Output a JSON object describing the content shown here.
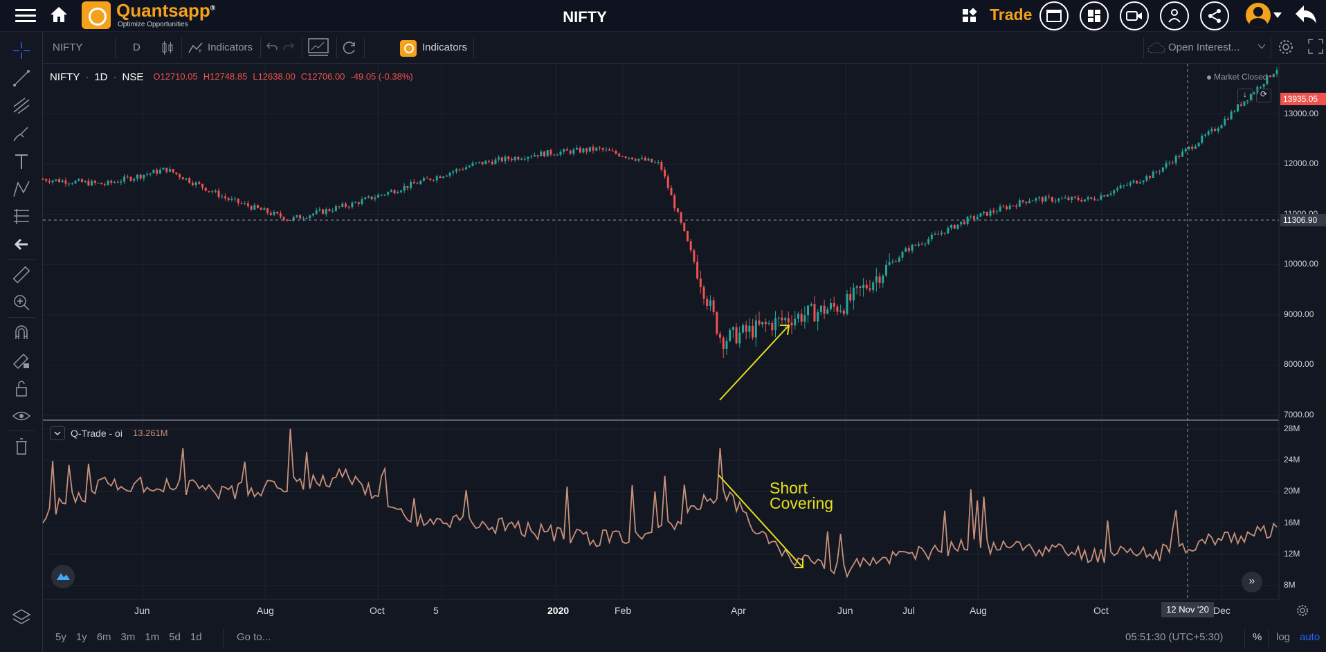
{
  "header": {
    "brand": "Quantsapp",
    "brand_mark": "®",
    "tagline": "Optimize Opportunities",
    "title": "NIFTY",
    "trade_label": "Trade"
  },
  "toolbar": {
    "symbol": "NIFTY",
    "interval": "D",
    "indicators_label": "Indicators",
    "q_indicators_label": "Indicators",
    "oi_select": "Open Interest..."
  },
  "legend": {
    "symbol": "NIFTY",
    "interval": "1D",
    "exchange": "NSE",
    "open": "O12710.05",
    "high": "H12748.85",
    "low": "L12638.00",
    "close": "C12706.00",
    "change": "-49.05 (-0.38%)",
    "status": "Market Closed"
  },
  "indicator": {
    "name": "Q-Trade - oi",
    "value": "13.261M"
  },
  "annotation": {
    "line1": "Short",
    "line2": "Covering"
  },
  "axis": {
    "price_ticks": [
      "13000.00",
      "12000.00",
      "11000.00",
      "10000.00",
      "9000.00",
      "8000.00",
      "7000.00"
    ],
    "last_price": "13935.05",
    "crosshair_price": "11306.90",
    "oi_ticks": [
      "28M",
      "24M",
      "20M",
      "16M",
      "12M",
      "8M"
    ],
    "time_labels": [
      "Jun",
      "Aug",
      "Oct",
      "5",
      "2020",
      "Feb",
      "Apr",
      "Jun",
      "Jul",
      "Aug",
      "Oct",
      "Dec"
    ],
    "crosshair_date": "12 Nov '20"
  },
  "bottombar": {
    "ranges": [
      "5y",
      "1y",
      "6m",
      "3m",
      "1m",
      "5d",
      "1d"
    ],
    "goto": "Go to...",
    "time": "05:51:30 (UTC+5:30)",
    "pct": "%",
    "log": "log",
    "auto": "auto"
  },
  "colors": {
    "up": "#26a69a",
    "down": "#ef5350",
    "oi_line": "#c8917c",
    "accent": "#f4a11c",
    "annotation": "#e7e01b"
  },
  "chart_data": {
    "type": "candlestick",
    "series": [
      {
        "name": "NIFTY",
        "type": "candlestick"
      },
      {
        "name": "Q-Trade - oi",
        "type": "line"
      }
    ],
    "price_range": [
      7000,
      14000
    ],
    "oi_range": [
      6,
      30
    ],
    "x": [
      "Apr '19",
      "May '19",
      "Jun '19",
      "Jul '19",
      "Aug '19",
      "Sep '19",
      "Oct '19",
      "Nov '19",
      "Dec '19",
      "Jan '20",
      "Feb '20",
      "Mar '20",
      "Apr '20",
      "May '20",
      "Jun '20",
      "Jul '20",
      "Aug '20",
      "Sep '20",
      "Oct '20",
      "Nov '20",
      "Dec '20"
    ],
    "price_close": [
      11700,
      11600,
      11900,
      11300,
      10900,
      11200,
      11600,
      12000,
      12200,
      12300,
      12000,
      8500,
      8900,
      9200,
      10300,
      10900,
      11300,
      11300,
      11800,
      12700,
      13900
    ],
    "oi": [
      17,
      21,
      21,
      20,
      21,
      22,
      16,
      16,
      15,
      14,
      15,
      20,
      12,
      10,
      12,
      13,
      13,
      12,
      12,
      14,
      15
    ]
  }
}
